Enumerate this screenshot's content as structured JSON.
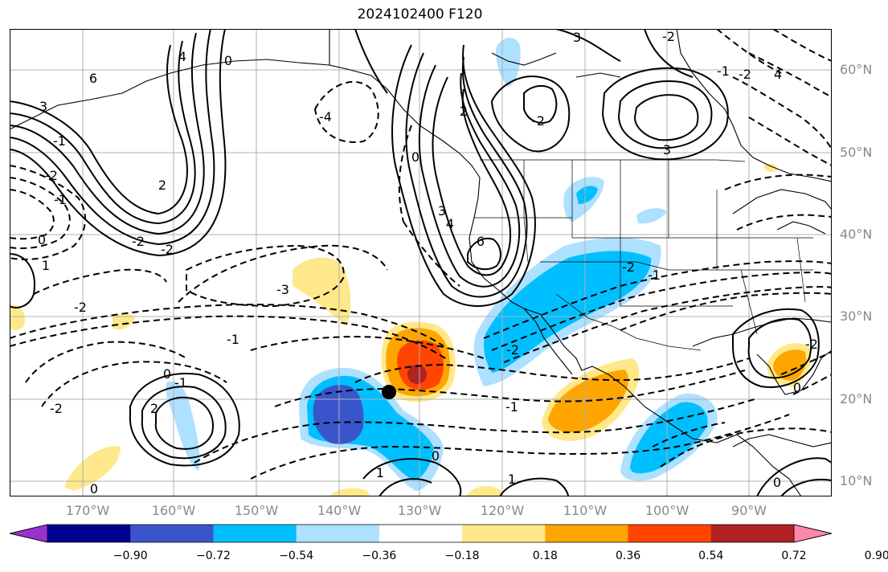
{
  "title": "2024102400 F120",
  "lat_labels": [
    "60°N",
    "50°N",
    "40°N",
    "30°N",
    "20°N",
    "10°N"
  ],
  "lon_labels": [
    "170°W",
    "160°W",
    "150°W",
    "140°W",
    "130°W",
    "120°W",
    "110°W",
    "100°W",
    "90°W"
  ],
  "colorbar": {
    "ticks": [
      "−0.90",
      "−0.72",
      "−0.54",
      "−0.36",
      "−0.18",
      "0.18",
      "0.36",
      "0.54",
      "0.72",
      "0.90"
    ],
    "colors": [
      "#9b30d0",
      "#000090",
      "#3a55cc",
      "#00bfff",
      "#aee0ff",
      "#ffffff",
      "#ffe88a",
      "#ffa500",
      "#ff4500",
      "#b22222",
      "#ff88aa"
    ]
  },
  "contour_labels": [
    "3",
    "6",
    "4",
    "0",
    "2",
    "3",
    "-4",
    "0",
    "2",
    "4",
    "6",
    "3",
    "3",
    "-2",
    "-1",
    "-2",
    "0",
    "-2",
    "1",
    "-2",
    "-3",
    "-1",
    "-2",
    "-1",
    "0",
    "-1",
    "-2",
    "0",
    "1",
    "2",
    "-2",
    "-1",
    "1",
    "0",
    "-2",
    "-1",
    "-2",
    "-1",
    "-2",
    "4",
    "0",
    "-2",
    "0"
  ]
}
